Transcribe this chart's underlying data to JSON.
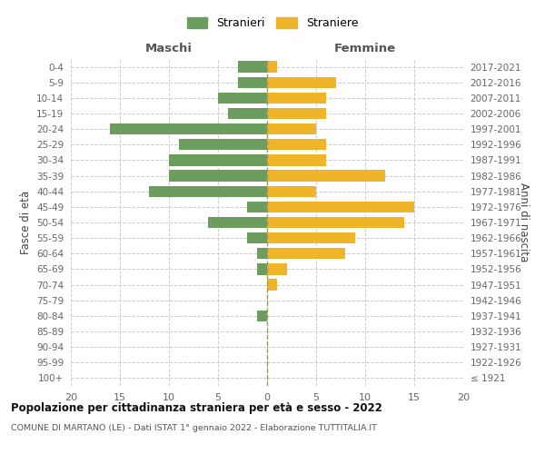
{
  "age_groups": [
    "100+",
    "95-99",
    "90-94",
    "85-89",
    "80-84",
    "75-79",
    "70-74",
    "65-69",
    "60-64",
    "55-59",
    "50-54",
    "45-49",
    "40-44",
    "35-39",
    "30-34",
    "25-29",
    "20-24",
    "15-19",
    "10-14",
    "5-9",
    "0-4"
  ],
  "birth_years": [
    "≤ 1921",
    "1922-1926",
    "1927-1931",
    "1932-1936",
    "1937-1941",
    "1942-1946",
    "1947-1951",
    "1952-1956",
    "1957-1961",
    "1962-1966",
    "1967-1971",
    "1972-1976",
    "1977-1981",
    "1982-1986",
    "1987-1991",
    "1992-1996",
    "1997-2001",
    "2002-2006",
    "2007-2011",
    "2012-2016",
    "2017-2021"
  ],
  "males": [
    0,
    0,
    0,
    0,
    1,
    0,
    0,
    1,
    1,
    2,
    6,
    2,
    12,
    10,
    10,
    9,
    16,
    4,
    5,
    3,
    3
  ],
  "females": [
    0,
    0,
    0,
    0,
    0,
    0,
    1,
    2,
    8,
    9,
    14,
    15,
    5,
    12,
    6,
    6,
    5,
    6,
    6,
    7,
    1
  ],
  "male_color": "#6b9e5e",
  "female_color": "#f0b429",
  "title": "Popolazione per cittadinanza straniera per età e sesso - 2022",
  "subtitle": "COMUNE DI MARTANO (LE) - Dati ISTAT 1° gennaio 2022 - Elaborazione TUTTITALIA.IT",
  "xlabel_left": "Maschi",
  "xlabel_right": "Femmine",
  "ylabel_left": "Fasce di età",
  "ylabel_right": "Anni di nascita",
  "legend_male": "Stranieri",
  "legend_female": "Straniere",
  "xlim": 20,
  "background_color": "#ffffff",
  "grid_color": "#cccccc"
}
